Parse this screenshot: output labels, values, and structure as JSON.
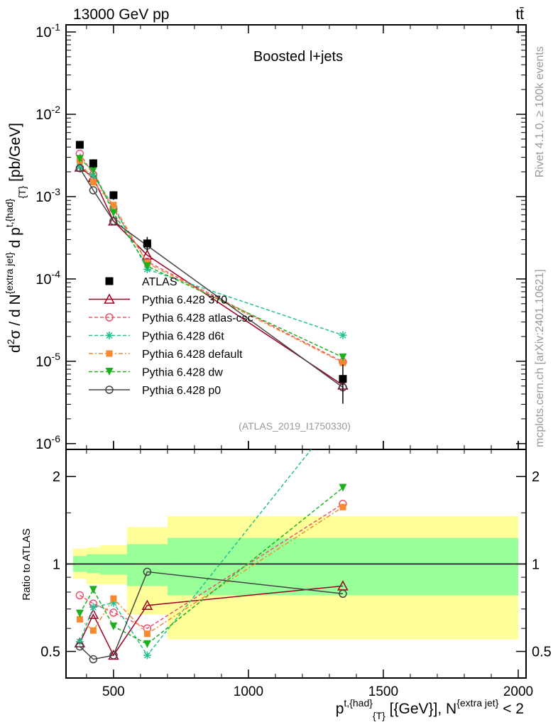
{
  "header": {
    "left": "13000 GeV pp",
    "right": "tt̄"
  },
  "side_labels": {
    "rivet": "Rivet 4.1.0, ≥ 100k events",
    "mcplots": "mcplots.cern.ch [arXiv:2401.10621]"
  },
  "chart_data": {
    "type": "line",
    "title": "Boosted l+jets",
    "analysis_id": "(ATLAS_2019_I1750330)",
    "xlabel": "p^{t,{had}}_{T} [{GeV}], N^{extra jet} < 2",
    "ylabel": "d²σ / d N^{extra jet} d p^{t,{had}}_{T} [pb/GeV]",
    "ratio_ylabel": "Ratio to ATLAS",
    "xlim": [
      324,
      2029
    ],
    "ylim": [
      8.5e-07,
      0.122
    ],
    "yscale": "log",
    "ratio_ylim": [
      0.405,
      2.48
    ],
    "ratio_yscale": "log",
    "x_ticks": [
      "500",
      "1000",
      "1500",
      "2000"
    ],
    "x_tick_values": [
      500,
      1000,
      1500,
      2000
    ],
    "y_ticks": [
      {
        "base": "10",
        "exp": "-1"
      },
      {
        "base": "10",
        "exp": "-2"
      },
      {
        "base": "10",
        "exp": "-3"
      },
      {
        "base": "10",
        "exp": "-4"
      },
      {
        "base": "10",
        "exp": "-5"
      },
      {
        "base": "10",
        "exp": "-6"
      }
    ],
    "y_tick_values": [
      0.1,
      0.01,
      0.001,
      0.0001,
      1e-05,
      1e-06
    ],
    "ratio_ticks": [
      "0.5",
      "1",
      "2"
    ],
    "ratio_tick_values": [
      0.5,
      1,
      2
    ],
    "bin_edges": [
      350,
      400,
      450,
      550,
      700,
      2000
    ],
    "x": [
      375,
      425,
      500,
      625,
      1350
    ],
    "data": {
      "name": "ATLAS",
      "color": "#000000",
      "values": [
        0.00426,
        0.00254,
        0.00104,
        0.00027,
        6.1e-06
      ],
      "rel_err": [
        0.1,
        0.12,
        0.12,
        0.2,
        0.5
      ]
    },
    "bands": {
      "total": {
        "color": "#ffff99",
        "up": [
          1.13,
          1.14,
          1.16,
          1.34,
          1.46
        ],
        "down": [
          0.89,
          0.85,
          0.85,
          0.67,
          0.55
        ]
      },
      "stat": {
        "color": "#99ff99",
        "up": [
          1.065,
          1.08,
          1.08,
          1.17,
          1.23
        ],
        "down": [
          0.94,
          0.93,
          0.92,
          0.84,
          0.78
        ]
      }
    },
    "series": [
      {
        "name": "Pythia 6.428 370",
        "color": "#a00020",
        "marker": "triangle-open",
        "dash": "",
        "ratio": [
          0.535,
          0.67,
          0.485,
          0.72,
          0.84
        ]
      },
      {
        "name": "Pythia 6.428 atlas-csc",
        "color": "#f0506e",
        "marker": "circle-open",
        "dash": "5,3",
        "ratio": [
          0.78,
          0.73,
          0.68,
          0.6,
          1.61
        ]
      },
      {
        "name": "Pythia 6.428 d6t",
        "color": "#20c090",
        "marker": "star",
        "dash": "5,3",
        "ratio": [
          0.54,
          0.71,
          0.735,
          0.485,
          3.4
        ]
      },
      {
        "name": "Pythia 6.428 default",
        "color": "#f78a2e",
        "marker": "square",
        "dash": "6,3,2,3",
        "ratio": [
          0.645,
          0.59,
          0.76,
          0.575,
          1.57
        ]
      },
      {
        "name": "Pythia 6.428 dw",
        "color": "#1cb01c",
        "marker": "triangle-down",
        "dash": "5,3",
        "ratio": [
          0.675,
          0.815,
          0.61,
          0.53,
          1.83
        ]
      },
      {
        "name": "Pythia 6.428 p0",
        "color": "#444444",
        "marker": "circle-open",
        "dash": "",
        "ratio": [
          0.52,
          0.47,
          0.485,
          0.94,
          0.79
        ]
      }
    ],
    "legend_position": "center-left"
  }
}
